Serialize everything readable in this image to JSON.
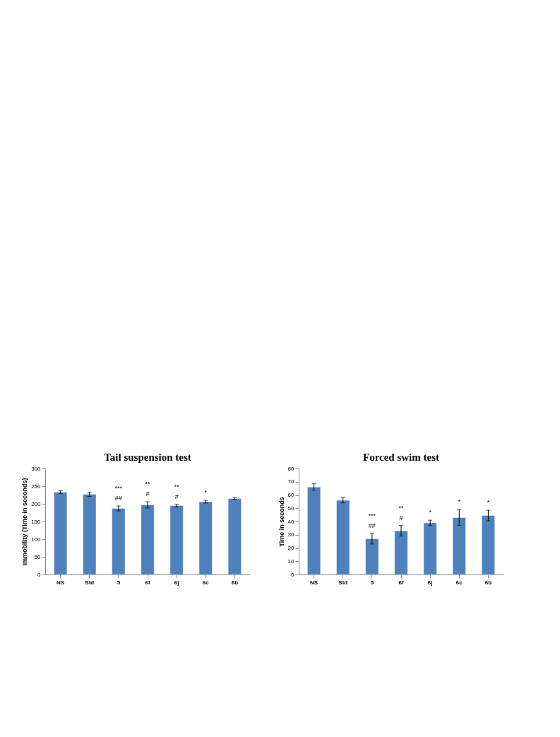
{
  "chart_data": [
    {
      "type": "bar",
      "title": "Tail suspension test",
      "ylabel": "Immobility (Time in seconds)",
      "categories": [
        "NS",
        "Std",
        "5",
        "6f",
        "6j",
        "6c",
        "6b"
      ],
      "values": [
        233,
        227,
        187,
        197,
        195,
        206,
        215
      ],
      "errors": [
        4,
        6,
        7,
        9,
        4,
        4,
        2
      ],
      "color": "#4f81bd",
      "ylim": [
        0,
        300
      ],
      "yticks": [
        0,
        50,
        100,
        150,
        200,
        250,
        300
      ],
      "grid": false,
      "value_labels": [
        null,
        null,
        "***\n##",
        "**\n#",
        "**\n#",
        "*",
        null
      ]
    },
    {
      "type": "bar",
      "title": "Forced swim test",
      "ylabel": "Time in seconds",
      "categories": [
        "NS",
        "Std",
        "5",
        "6f",
        "6j",
        "6c",
        "6b"
      ],
      "values": [
        66,
        56,
        27,
        33,
        39,
        43,
        44.5
      ],
      "errors": [
        2.5,
        2,
        4,
        4,
        2,
        6,
        4
      ],
      "color": "#4f81bd",
      "ylim": [
        0,
        80
      ],
      "yticks": [
        0,
        10,
        20,
        30,
        40,
        50,
        60,
        70,
        80
      ],
      "grid": false,
      "value_labels": [
        null,
        null,
        "***\n##",
        "**\n#",
        "*",
        "*",
        "*"
      ]
    }
  ]
}
